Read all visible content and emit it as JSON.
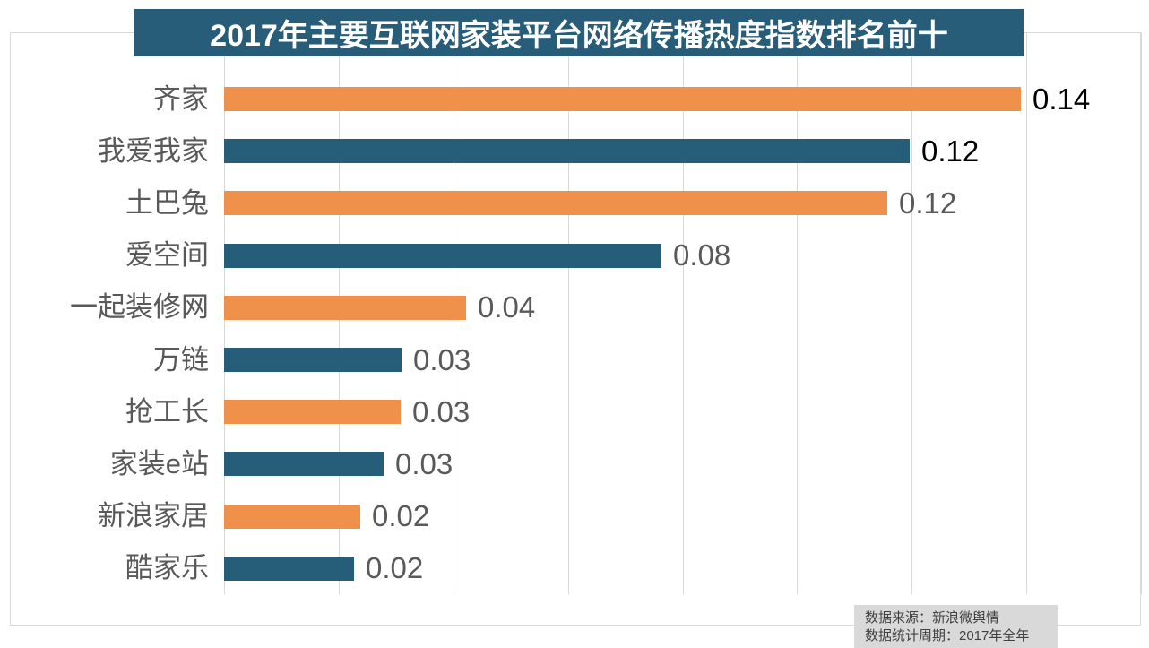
{
  "title": {
    "text": "2017年主要互联网家装平台网络传播热度指数排名前十",
    "bg_color": "#275D78",
    "text_color": "#FFFFFF"
  },
  "chart_data": {
    "type": "bar",
    "orientation": "horizontal",
    "title": "2017年主要互联网家装平台网络传播热度指数排名前十",
    "categories": [
      "齐家",
      "我爱我家",
      "土巴兔",
      "爱空间",
      "一起装修网",
      "万链",
      "抢工长",
      "家装e站",
      "新浪家居",
      "酷家乐"
    ],
    "values": [
      0.14,
      0.12,
      0.12,
      0.08,
      0.04,
      0.03,
      0.03,
      0.03,
      0.02,
      0.02
    ],
    "value_labels": [
      "0.14",
      "0.12",
      "0.12",
      "0.08",
      "0.04",
      "0.03",
      "0.03",
      "0.03",
      "0.02",
      "0.02"
    ],
    "bar_values_precise": [
      0.139,
      0.1196,
      0.1157,
      0.0763,
      0.0422,
      0.031,
      0.0308,
      0.0278,
      0.0238,
      0.0227
    ],
    "xlim": [
      0,
      0.16
    ],
    "gridline_step": 0.02,
    "grid": true,
    "legend": "none",
    "bar_colors_alternating": [
      "#F0914B",
      "#265D78"
    ],
    "value_label_colors": [
      "#000000",
      "#000000",
      "#595959",
      "#595959",
      "#595959",
      "#595959",
      "#595959",
      "#595959",
      "#595959",
      "#595959"
    ],
    "category_label_color": "#595959",
    "gridline_color": "#D9D9D9"
  },
  "source_note": {
    "line1": "数据来源：新浪微舆情",
    "line2": "数据统计周期：2017年全年",
    "bg_color": "#D9D9D9",
    "text_color": "#404040"
  }
}
